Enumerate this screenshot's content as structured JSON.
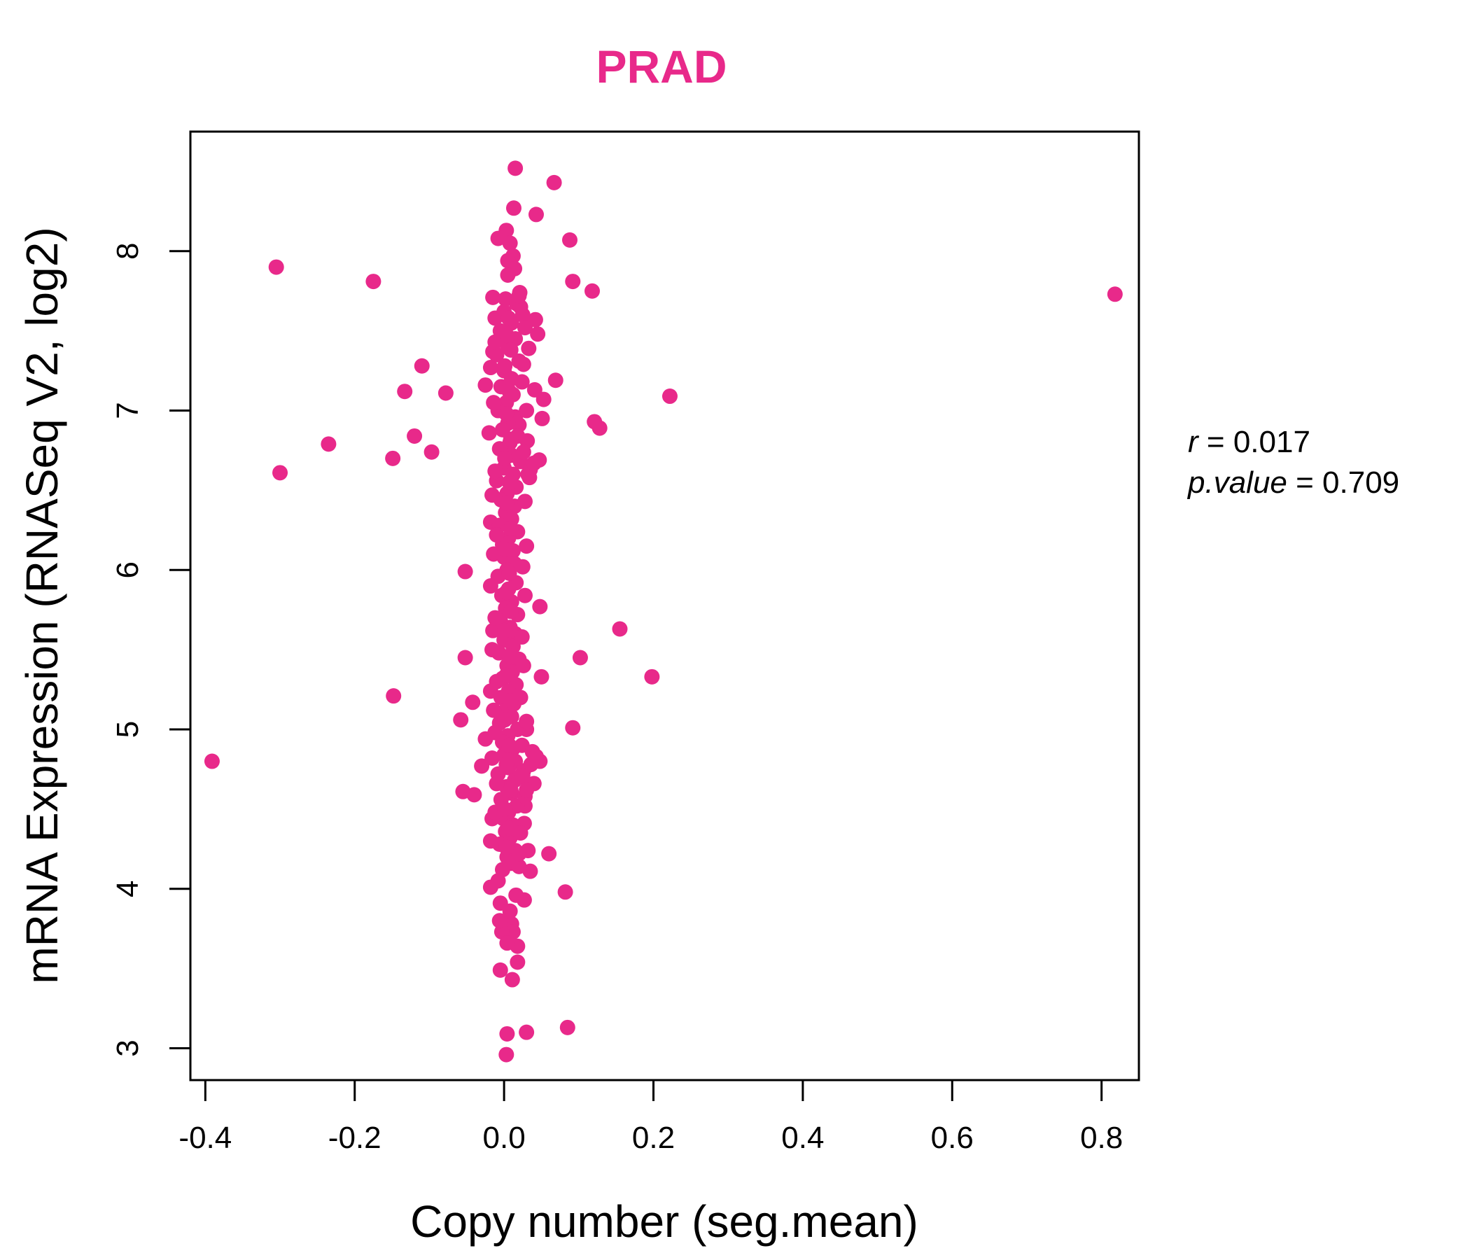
{
  "chart_data": {
    "type": "scatter",
    "title": "PRAD",
    "xlabel": "Copy number (seg.mean)",
    "ylabel": "mRNA Expression (RNASeq V2, log2)",
    "xlim": [
      -0.42,
      0.85
    ],
    "ylim": [
      2.8,
      8.75
    ],
    "x_ticks": [
      -0.4,
      -0.2,
      0.0,
      0.2,
      0.4,
      0.6,
      0.8
    ],
    "x_tick_labels": [
      "-0.4",
      "-0.2",
      "0.0",
      "0.2",
      "0.4",
      "0.6",
      "0.8"
    ],
    "y_ticks": [
      3,
      4,
      5,
      6,
      7,
      8
    ],
    "y_tick_labels": [
      "3",
      "4",
      "5",
      "6",
      "7",
      "8"
    ],
    "point_color": "#E8298A",
    "stats": {
      "r_label": "r",
      "r_value": "0.017",
      "p_label": "p.value",
      "p_value": "0.709"
    },
    "points": [
      [
        0.015,
        8.52
      ],
      [
        0.067,
        8.43
      ],
      [
        0.013,
        8.27
      ],
      [
        0.043,
        8.23
      ],
      [
        0.088,
        8.07
      ],
      [
        0.003,
        8.13
      ],
      [
        -0.008,
        8.08
      ],
      [
        0.008,
        8.05
      ],
      [
        0.012,
        7.97
      ],
      [
        0.005,
        7.94
      ],
      [
        0.014,
        7.89
      ],
      [
        -0.305,
        7.9
      ],
      [
        -0.175,
        7.81
      ],
      [
        0.092,
        7.81
      ],
      [
        0.118,
        7.75
      ],
      [
        0.818,
        7.73
      ],
      [
        0.005,
        7.85
      ],
      [
        0.021,
        7.74
      ],
      [
        0.002,
        7.7
      ],
      [
        0.017,
        7.67
      ],
      [
        0.042,
        7.57
      ],
      [
        0.045,
        7.48
      ],
      [
        -0.012,
        7.58
      ],
      [
        -0.015,
        7.37
      ],
      [
        0.033,
        7.39
      ],
      [
        -0.11,
        7.28
      ],
      [
        0.026,
        7.29
      ],
      [
        -0.025,
        7.16
      ],
      [
        -0.133,
        7.12
      ],
      [
        -0.078,
        7.11
      ],
      [
        0.069,
        7.19
      ],
      [
        0.041,
        7.13
      ],
      [
        0.053,
        7.07
      ],
      [
        0.222,
        7.09
      ],
      [
        0.051,
        6.95
      ],
      [
        0.121,
        6.93
      ],
      [
        0.128,
        6.89
      ],
      [
        -0.12,
        6.84
      ],
      [
        -0.235,
        6.79
      ],
      [
        -0.097,
        6.74
      ],
      [
        -0.149,
        6.7
      ],
      [
        0.047,
        6.69
      ],
      [
        0.031,
        6.81
      ],
      [
        0.02,
        6.91
      ],
      [
        -0.3,
        6.61
      ],
      [
        0.032,
        6.6
      ],
      [
        -0.018,
        6.3
      ],
      [
        -0.052,
        5.99
      ],
      [
        0.048,
        5.77
      ],
      [
        0.155,
        5.63
      ],
      [
        -0.015,
        5.62
      ],
      [
        -0.052,
        5.45
      ],
      [
        0.102,
        5.45
      ],
      [
        0.198,
        5.33
      ],
      [
        0.05,
        5.33
      ],
      [
        -0.148,
        5.21
      ],
      [
        -0.042,
        5.17
      ],
      [
        -0.058,
        5.06
      ],
      [
        -0.018,
        5.24
      ],
      [
        0.092,
        5.01
      ],
      [
        -0.025,
        4.94
      ],
      [
        -0.391,
        4.8
      ],
      [
        -0.03,
        4.77
      ],
      [
        0.03,
        5.0
      ],
      [
        0.048,
        4.8
      ],
      [
        0.036,
        4.78
      ],
      [
        -0.055,
        4.61
      ],
      [
        -0.04,
        4.59
      ],
      [
        0.04,
        4.66
      ],
      [
        0.028,
        4.52
      ],
      [
        -0.016,
        4.44
      ],
      [
        0.027,
        4.41
      ],
      [
        0.06,
        4.22
      ],
      [
        0.032,
        4.24
      ],
      [
        0.035,
        4.11
      ],
      [
        0.082,
        3.98
      ],
      [
        -0.018,
        4.01
      ],
      [
        0.027,
        3.93
      ],
      [
        -0.005,
        3.91
      ],
      [
        0.01,
        3.78
      ],
      [
        0.012,
        3.73
      ],
      [
        0.018,
        3.64
      ],
      [
        -0.003,
        3.73
      ],
      [
        0.004,
        3.66
      ],
      [
        0.018,
        3.54
      ],
      [
        -0.005,
        3.49
      ],
      [
        0.011,
        3.43
      ],
      [
        0.085,
        3.13
      ],
      [
        0.03,
        3.1
      ],
      [
        0.004,
        3.09
      ],
      [
        0.003,
        2.96
      ],
      [
        0.0,
        7.62
      ],
      [
        0.01,
        7.55
      ],
      [
        -0.005,
        7.5
      ],
      [
        0.015,
        7.45
      ],
      [
        0.005,
        7.4
      ],
      [
        -0.01,
        7.35
      ],
      [
        0.02,
        7.31
      ],
      [
        0.0,
        7.25
      ],
      [
        0.01,
        7.2
      ],
      [
        -0.004,
        7.15
      ],
      [
        0.012,
        7.1
      ],
      [
        0.003,
        7.05
      ],
      [
        -0.008,
        7.0
      ],
      [
        0.015,
        6.96
      ],
      [
        0.005,
        6.92
      ],
      [
        -0.002,
        6.88
      ],
      [
        0.018,
        6.84
      ],
      [
        0.008,
        6.8
      ],
      [
        -0.006,
        6.76
      ],
      [
        0.01,
        6.72
      ],
      [
        0.022,
        6.68
      ],
      [
        0.0,
        6.64
      ],
      [
        0.012,
        6.6
      ],
      [
        -0.01,
        6.56
      ],
      [
        0.016,
        6.52
      ],
      [
        0.004,
        6.48
      ],
      [
        -0.004,
        6.44
      ],
      [
        0.014,
        6.4
      ],
      [
        0.002,
        6.36
      ],
      [
        0.01,
        6.32
      ],
      [
        -0.006,
        6.28
      ],
      [
        0.018,
        6.24
      ],
      [
        0.006,
        6.2
      ],
      [
        -0.002,
        6.16
      ],
      [
        0.012,
        6.12
      ],
      [
        0.0,
        6.08
      ],
      [
        0.014,
        6.04
      ],
      [
        0.004,
        6.0
      ],
      [
        -0.008,
        5.96
      ],
      [
        0.016,
        5.92
      ],
      [
        0.006,
        5.88
      ],
      [
        -0.003,
        5.84
      ],
      [
        0.01,
        5.8
      ],
      [
        0.002,
        5.76
      ],
      [
        0.018,
        5.72
      ],
      [
        -0.005,
        5.68
      ],
      [
        0.008,
        5.64
      ],
      [
        0.015,
        5.6
      ],
      [
        0.0,
        5.56
      ],
      [
        0.012,
        5.52
      ],
      [
        -0.007,
        5.48
      ],
      [
        0.02,
        5.44
      ],
      [
        0.004,
        5.4
      ],
      [
        0.011,
        5.36
      ],
      [
        -0.002,
        5.32
      ],
      [
        0.016,
        5.28
      ],
      [
        0.006,
        5.24
      ],
      [
        -0.004,
        5.2
      ],
      [
        0.013,
        5.16
      ],
      [
        0.002,
        5.12
      ],
      [
        0.01,
        5.08
      ],
      [
        -0.006,
        5.04
      ],
      [
        0.018,
        5.0
      ],
      [
        0.005,
        4.96
      ],
      [
        -0.002,
        4.92
      ],
      [
        0.012,
        4.88
      ],
      [
        0.0,
        4.84
      ],
      [
        0.015,
        4.8
      ],
      [
        0.006,
        4.76
      ],
      [
        -0.008,
        4.72
      ],
      [
        0.014,
        4.68
      ],
      [
        0.003,
        4.64
      ],
      [
        0.01,
        4.6
      ],
      [
        -0.004,
        4.56
      ],
      [
        0.017,
        4.52
      ],
      [
        0.006,
        4.48
      ],
      [
        -0.001,
        4.44
      ],
      [
        0.012,
        4.4
      ],
      [
        0.002,
        4.36
      ],
      [
        0.008,
        4.32
      ],
      [
        -0.006,
        4.28
      ],
      [
        0.015,
        4.24
      ],
      [
        0.004,
        4.2
      ],
      [
        0.01,
        4.16
      ],
      [
        -0.002,
        4.12
      ],
      [
        0.02,
        4.14
      ],
      [
        -0.015,
        7.71
      ],
      [
        0.025,
        7.6
      ],
      [
        -0.012,
        7.43
      ],
      [
        0.028,
        7.52
      ],
      [
        -0.018,
        7.27
      ],
      [
        0.024,
        7.18
      ],
      [
        -0.014,
        7.05
      ],
      [
        0.03,
        7.0
      ],
      [
        -0.02,
        6.86
      ],
      [
        0.026,
        6.74
      ],
      [
        -0.012,
        6.62
      ],
      [
        0.034,
        6.58
      ],
      [
        -0.016,
        6.47
      ],
      [
        0.028,
        6.43
      ],
      [
        -0.01,
        6.22
      ],
      [
        0.03,
        6.15
      ],
      [
        -0.014,
        6.1
      ],
      [
        0.025,
        6.02
      ],
      [
        -0.018,
        5.9
      ],
      [
        0.028,
        5.84
      ],
      [
        -0.012,
        5.7
      ],
      [
        0.024,
        5.58
      ],
      [
        -0.016,
        5.5
      ],
      [
        0.026,
        5.4
      ],
      [
        -0.01,
        5.3
      ],
      [
        0.022,
        5.2
      ],
      [
        -0.014,
        5.12
      ],
      [
        0.03,
        5.05
      ],
      [
        -0.012,
        4.98
      ],
      [
        0.024,
        4.9
      ],
      [
        -0.016,
        4.82
      ],
      [
        0.026,
        4.74
      ],
      [
        -0.01,
        4.66
      ],
      [
        0.028,
        4.58
      ],
      [
        -0.012,
        4.48
      ],
      [
        0.022,
        4.35
      ],
      [
        -0.018,
        4.3
      ],
      [
        0.02,
        4.22
      ],
      [
        -0.008,
        4.05
      ],
      [
        0.016,
        3.96
      ],
      [
        0.008,
        3.86
      ],
      [
        -0.006,
        3.8
      ],
      [
        0.006,
        7.58
      ],
      [
        0.004,
        7.47
      ],
      [
        0.009,
        7.38
      ],
      [
        0.001,
        7.28
      ],
      [
        0.007,
        7.12
      ],
      [
        0.003,
        6.98
      ],
      [
        0.009,
        6.82
      ],
      [
        0.001,
        6.7
      ],
      [
        0.007,
        6.55
      ],
      [
        0.003,
        6.42
      ],
      [
        0.009,
        6.26
      ],
      [
        0.001,
        6.13
      ],
      [
        0.007,
        5.98
      ],
      [
        0.003,
        5.86
      ],
      [
        0.009,
        5.74
      ],
      [
        0.001,
        5.62
      ],
      [
        0.007,
        5.46
      ],
      [
        0.003,
        5.34
      ],
      [
        0.009,
        5.18
      ],
      [
        0.001,
        5.06
      ],
      [
        0.007,
        4.9
      ],
      [
        0.003,
        4.78
      ],
      [
        0.009,
        4.62
      ],
      [
        0.001,
        4.5
      ],
      [
        0.007,
        4.38
      ],
      [
        0.003,
        4.26
      ],
      [
        0.035,
        6.63
      ],
      [
        0.04,
        6.67
      ],
      [
        0.038,
        4.86
      ],
      [
        0.043,
        4.83
      ],
      [
        0.02,
        4.7
      ],
      [
        0.025,
        4.71
      ],
      [
        0.03,
        4.62
      ],
      [
        0.022,
        7.65
      ],
      [
        0.02,
        7.72
      ]
    ]
  }
}
